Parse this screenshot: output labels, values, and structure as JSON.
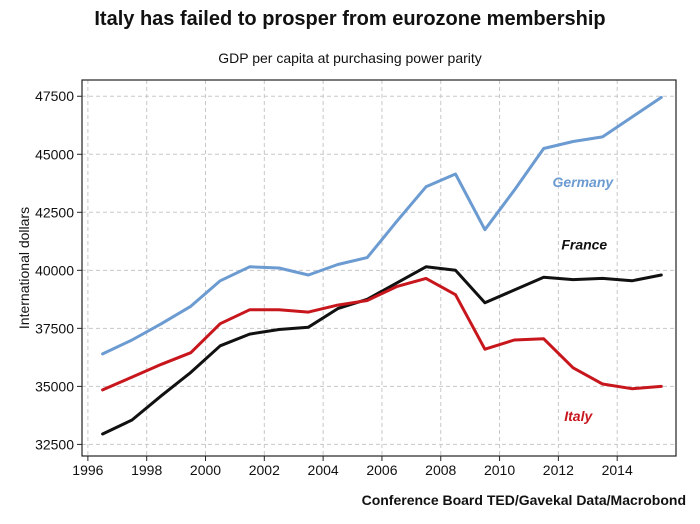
{
  "chart_data": {
    "type": "line",
    "title": "Italy has failed to prosper from eurozone membership",
    "subtitle": "GDP per capita at purchasing power parity",
    "ylabel": "International dollars",
    "xlabel": "",
    "source": "Conference Board TED/Gavekal Data/Macrobond",
    "xlim": [
      1995.8,
      2016
    ],
    "ylim": [
      32000,
      48200
    ],
    "x_ticks": [
      "1996",
      "1998",
      "2000",
      "2002",
      "2004",
      "2006",
      "2008",
      "2010",
      "2012",
      "2014"
    ],
    "y_ticks": [
      "32500",
      "35000",
      "37500",
      "40000",
      "42500",
      "45000",
      "47500"
    ],
    "grid": true,
    "x": [
      1996.5,
      1997.5,
      1998.5,
      1999.5,
      2000.5,
      2001.5,
      2002.5,
      2003.5,
      2004.5,
      2005.5,
      2006.5,
      2007.5,
      2008.5,
      2009.5,
      2010.5,
      2011.5,
      2012.5,
      2013.5,
      2014.5,
      2015.5
    ],
    "series": [
      {
        "name": "Germany",
        "color": "#6b9bd1",
        "values": [
          36400,
          37000,
          37700,
          38450,
          39550,
          40150,
          40100,
          39800,
          40250,
          40550,
          42100,
          43600,
          44150,
          41750,
          43450,
          45250,
          45550,
          45750,
          46600,
          47450
        ]
      },
      {
        "name": "France",
        "color": "#111111",
        "values": [
          32950,
          33550,
          34600,
          35600,
          36750,
          37250,
          37450,
          37550,
          38350,
          38750,
          39450,
          40150,
          40000,
          38600,
          39150,
          39700,
          39600,
          39650,
          39550,
          39800
        ]
      },
      {
        "name": "Italy",
        "color": "#c8161d",
        "values": [
          34850,
          35400,
          35950,
          36450,
          37700,
          38300,
          38300,
          38200,
          38500,
          38700,
          39300,
          39650,
          38950,
          36600,
          37000,
          37050,
          35800,
          35100,
          34900,
          35000
        ]
      }
    ],
    "series_labels": [
      {
        "name": "Germany",
        "x": 2011.8,
        "y": 43600
      },
      {
        "name": "France",
        "x": 2012.1,
        "y": 40900
      },
      {
        "name": "Italy",
        "x": 2012.2,
        "y": 33500
      }
    ]
  }
}
